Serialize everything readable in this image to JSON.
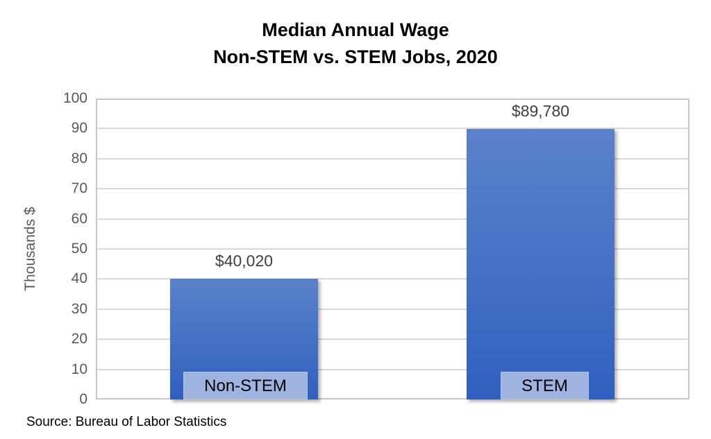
{
  "chart_data": {
    "type": "bar",
    "title": "Median Annual Wage",
    "subtitle": "Non-STEM vs. STEM Jobs, 2020",
    "categories": [
      "Non-STEM",
      "STEM"
    ],
    "values": [
      40.02,
      89.78
    ],
    "data_labels": [
      "$40,020",
      "$89,780"
    ],
    "xlabel": "",
    "ylabel": "Thousands $",
    "ylim": [
      0,
      100
    ],
    "yticks": [
      "0",
      "10",
      "20",
      "30",
      "40",
      "50",
      "60",
      "70",
      "80",
      "90",
      "100"
    ],
    "grid": true,
    "legend": null,
    "annotation": "Source: Bureau of Labor Statistics",
    "colors": {
      "bar": "#4472c4",
      "label_box": "#9fb3e0",
      "grid": "#d9d9d9"
    }
  }
}
